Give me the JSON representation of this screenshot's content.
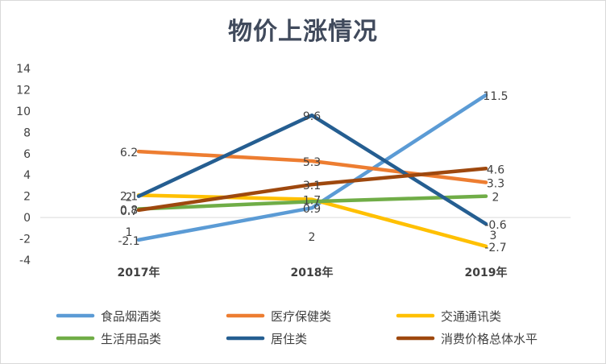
{
  "chart_data": {
    "type": "line",
    "title": "物价上涨情况",
    "categories": [
      "2017年",
      "2018年",
      "2019年"
    ],
    "ylim": [
      -4,
      14
    ],
    "yticks": [
      -4,
      -2,
      0,
      2,
      4,
      6,
      8,
      10,
      12,
      14
    ],
    "grid": false,
    "legend_position": "bottom",
    "series": [
      {
        "name": "食品烟酒类",
        "color": "#5b9bd5",
        "values": [
          -2.1,
          0.9,
          11.5
        ],
        "labels": [
          "-2.1",
          "0.9",
          "11.5"
        ]
      },
      {
        "name": "医疗保健类",
        "color": "#ed7d31",
        "values": [
          6.2,
          5.3,
          3.3
        ],
        "labels": [
          "6.2",
          "5.3",
          "3.3"
        ]
      },
      {
        "name": "交通通讯类",
        "color": "#ffc000",
        "values": [
          2.1,
          1.7,
          -2.7
        ],
        "labels": [
          "2.1",
          "1.7",
          "-2.7"
        ]
      },
      {
        "name": "生活用品类",
        "color": "#70ad47",
        "values": [
          0.8,
          1.5,
          2.0
        ],
        "labels": [
          "0.8",
          "",
          "2"
        ]
      },
      {
        "name": "居住类",
        "color": "#255e91",
        "values": [
          2.0,
          9.6,
          -0.6
        ],
        "labels": [
          "2",
          "9.6",
          "-0.6"
        ]
      },
      {
        "name": "消费价格总体水平",
        "color": "#9e480e",
        "values": [
          0.7,
          3.1,
          4.6
        ],
        "labels": [
          "0.7",
          "3.1",
          "4.6"
        ]
      }
    ],
    "extra_labels": [
      "1",
      "2",
      "3"
    ]
  }
}
